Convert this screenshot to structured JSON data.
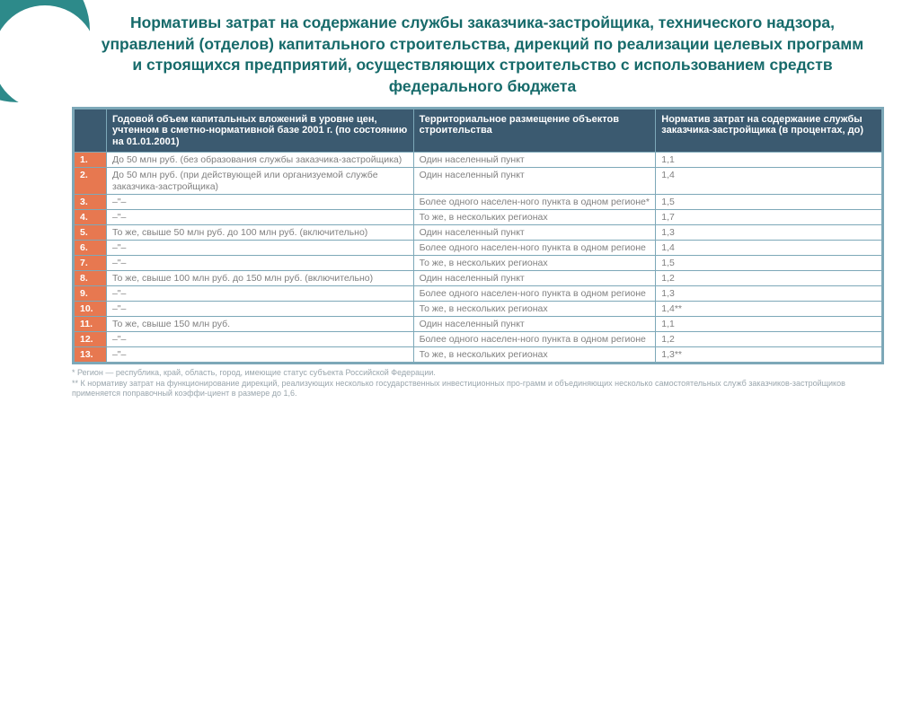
{
  "title": "Нормативы затрат на содержание службы заказчика-застройщика, технического надзора, управлений (отделов) капитального строительства, дирекций по реализации целевых программ и строящихся предприятий, осуществляющих строительство с использованием средств федерального бюджета",
  "headers": {
    "num": "",
    "col1": "Годовой объем капитальных вложений в уровне цен, учтенном в сметно-нормативной базе 2001 г. (по состоянию на 01.01.2001)",
    "col2": "Территориальное размещение объектов строительства",
    "col3": "Норматив затрат на содержание службы заказчика-застройщика (в процентах, до)"
  },
  "rows": [
    {
      "n": "1.",
      "c1": "До 50 млн руб. (без образования службы заказчика-застройщика)",
      "c2": "Один населенный пункт",
      "c3": "1,1"
    },
    {
      "n": "2.",
      "c1": "До 50 млн руб. (при действующей или организуемой службе заказчика-застройщика)",
      "c2": "Один населенный пункт",
      "c3": "1,4"
    },
    {
      "n": "3.",
      "c1": "–\"–",
      "c2": "Более одного населен-ного пункта в одном регионе*",
      "c3": "1,5"
    },
    {
      "n": "4.",
      "c1": "–\"–",
      "c2": "То же, в нескольких регионах",
      "c3": "1,7"
    },
    {
      "n": "5.",
      "c1": "То же, свыше 50 млн руб. до 100 млн руб. (включительно)",
      "c2": "Один населенный пункт",
      "c3": "1,3"
    },
    {
      "n": "6.",
      "c1": "–\"–",
      "c2": "Более одного населен-ного пункта в одном регионе",
      "c3": "1,4"
    },
    {
      "n": "7.",
      "c1": "–\"–",
      "c2": "То же, в нескольких регионах",
      "c3": "1,5"
    },
    {
      "n": "8.",
      "c1": "То же, свыше 100 млн руб. до 150 млн руб. (включительно)",
      "c2": "Один населенный пункт",
      "c3": "1,2"
    },
    {
      "n": "9.",
      "c1": "–\"–",
      "c2": "Более одного населен-ного пункта в одном регионе",
      "c3": "1,3"
    },
    {
      "n": "10.",
      "c1": "–\"–",
      "c2": "То же, в нескольких регионах",
      "c3": "1,4**"
    },
    {
      "n": "11.",
      "c1": "То же, свыше 150 млн руб.",
      "c2": "Один населенный пункт",
      "c3": "1,1"
    },
    {
      "n": "12.",
      "c1": "–\"–",
      "c2": "Более одного населен-ного пункта в одном регионе",
      "c3": "1,2"
    },
    {
      "n": "13.",
      "c1": "–\"–",
      "c2": "То же, в нескольких регионах",
      "c3": "1,3**"
    }
  ],
  "footnotes": {
    "f1": "* Регион — республика, край, область, город, имеющие статус субъекта Российской Федерации.",
    "f2": "** К нормативу затрат на функционирование дирекций, реализующих несколько государственных инвестиционных про-грамм и объединяющих несколько самостоятельных служб заказчиков-застройщиков применяется поправочный коэффи-циент в размере до 1,6."
  },
  "style": {
    "accent_circle": "#2d8a8a",
    "title_color": "#166a6a",
    "header_bg": "#3b5a70",
    "header_fg": "#ffffff",
    "num_bg": "#e77850",
    "num_fg": "#ffffff",
    "cell_fg": "#808080",
    "border": "#7da8b8",
    "font_title": 17.5,
    "font_header": 11,
    "font_cell": 10.5,
    "font_foot": 9
  }
}
